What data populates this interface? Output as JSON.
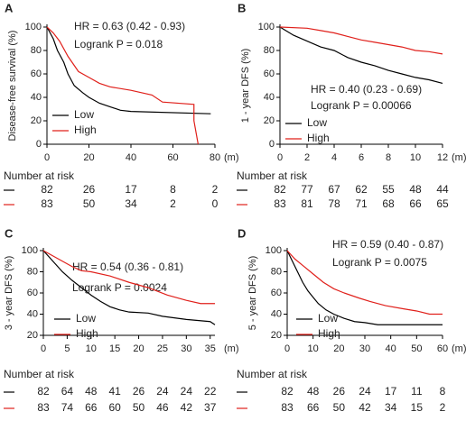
{
  "chart_data": [
    {
      "type": "line",
      "panel": "A",
      "y_label": "Disease-free survival (%)",
      "x_label": "(m)",
      "annotations": [
        "HR = 0.63 (0.42 - 0.93)",
        "Logrank P = 0.018"
      ],
      "xlim": [
        0,
        80
      ],
      "xticks": [
        0,
        20,
        40,
        60,
        80
      ],
      "ylim": [
        0,
        100
      ],
      "yticks": [
        0,
        20,
        40,
        60,
        80,
        100
      ],
      "legend": "lower left",
      "series": [
        {
          "name": "Low",
          "color": "#000000",
          "x": [
            0,
            3,
            5,
            8,
            10,
            13,
            17,
            20,
            25,
            30,
            35,
            40,
            78
          ],
          "values": [
            100,
            90,
            80,
            70,
            60,
            50,
            44,
            40,
            35,
            32,
            29,
            28,
            26
          ]
        },
        {
          "name": "High",
          "color": "#e0201b",
          "x": [
            0,
            3,
            6,
            10,
            15,
            20,
            25,
            30,
            40,
            50,
            55,
            70,
            70,
            72
          ],
          "values": [
            100,
            95,
            88,
            75,
            62,
            57,
            52,
            49,
            46,
            42,
            36,
            34,
            20,
            0
          ]
        }
      ],
      "risk_title": "Number at risk",
      "at_risk": [
        [
          82,
          26,
          17,
          8,
          2
        ],
        [
          83,
          50,
          34,
          2,
          0
        ]
      ]
    },
    {
      "type": "line",
      "panel": "B",
      "y_label": "1 - year DFS (%)",
      "x_label": "(m)",
      "annotations": [
        "HR = 0.40 (0.23 - 0.69)",
        "Logrank P = 0.00066"
      ],
      "xlim": [
        0,
        12
      ],
      "xticks": [
        0,
        2,
        4,
        6,
        8,
        10,
        12
      ],
      "ylim": [
        0,
        100
      ],
      "yticks": [
        0,
        20,
        40,
        60,
        80,
        100
      ],
      "legend": "center left",
      "series": [
        {
          "name": "Low",
          "color": "#000000",
          "x": [
            0,
            1,
            2,
            3,
            4,
            5,
            6,
            7,
            8,
            9,
            10,
            11,
            12
          ],
          "values": [
            100,
            93,
            88,
            83,
            80,
            74,
            70,
            67,
            63,
            60,
            57,
            55,
            52
          ]
        },
        {
          "name": "High",
          "color": "#e0201b",
          "x": [
            0,
            2,
            3,
            4,
            5,
            6,
            7,
            8,
            9,
            10,
            11,
            12
          ],
          "values": [
            100,
            99,
            97,
            95,
            92,
            89,
            87,
            85,
            83,
            80,
            79,
            77
          ]
        }
      ],
      "risk_title": "Number at risk",
      "at_risk": [
        [
          82,
          77,
          67,
          62,
          55,
          48,
          44
        ],
        [
          83,
          81,
          78,
          71,
          68,
          66,
          65
        ]
      ]
    },
    {
      "type": "line",
      "panel": "C",
      "y_label": "3 - year DFS (%)",
      "x_label": "(m)",
      "annotations": [
        "HR = 0.54 (0.36 - 0.81)",
        "Logrank P = 0.0024"
      ],
      "xlim": [
        0,
        36
      ],
      "xticks": [
        0,
        5,
        10,
        15,
        20,
        25,
        30,
        35
      ],
      "ylim": [
        20,
        100
      ],
      "yticks": [
        20,
        40,
        60,
        80,
        100
      ],
      "legend": "lower left",
      "series": [
        {
          "name": "Low",
          "color": "#000000",
          "x": [
            0,
            2,
            4,
            6,
            8,
            10,
            12,
            14,
            16,
            18,
            22,
            25,
            30,
            35,
            36
          ],
          "values": [
            100,
            90,
            80,
            72,
            65,
            58,
            52,
            47,
            44,
            42,
            41,
            38,
            35,
            33,
            30
          ]
        },
        {
          "name": "High",
          "color": "#e0201b",
          "x": [
            0,
            2,
            4,
            6,
            8,
            10,
            14,
            18,
            22,
            26,
            30,
            33,
            36
          ],
          "values": [
            100,
            95,
            90,
            85,
            81,
            80,
            76,
            70,
            65,
            58,
            53,
            50,
            50
          ]
        }
      ],
      "risk_title": "Number at risk",
      "at_risk": [
        [
          82,
          64,
          48,
          41,
          26,
          24,
          24,
          22
        ],
        [
          83,
          74,
          66,
          60,
          50,
          46,
          42,
          37
        ]
      ]
    },
    {
      "type": "line",
      "panel": "D",
      "y_label": "5 - year DFS (%)",
      "x_label": "(m)",
      "annotations": [
        "HR = 0.59 (0.40 - 0.87)",
        "Logrank P = 0.0075"
      ],
      "xlim": [
        0,
        60
      ],
      "xticks": [
        0,
        10,
        20,
        30,
        40,
        50,
        60
      ],
      "ylim": [
        20,
        100
      ],
      "yticks": [
        20,
        40,
        60,
        80,
        100
      ],
      "legend": "lower left",
      "series": [
        {
          "name": "Low",
          "color": "#000000",
          "x": [
            0,
            2,
            4,
            6,
            8,
            10,
            12,
            15,
            18,
            22,
            26,
            30,
            35,
            60
          ],
          "values": [
            100,
            90,
            80,
            70,
            62,
            56,
            50,
            44,
            40,
            36,
            33,
            32,
            30,
            30
          ]
        },
        {
          "name": "High",
          "color": "#e0201b",
          "x": [
            0,
            3,
            6,
            10,
            14,
            18,
            22,
            28,
            32,
            38,
            45,
            50,
            55,
            60
          ],
          "values": [
            100,
            92,
            86,
            78,
            70,
            64,
            60,
            55,
            52,
            48,
            45,
            43,
            40,
            40
          ]
        }
      ],
      "risk_title": "Number at risk",
      "at_risk": [
        [
          82,
          48,
          26,
          24,
          17,
          11,
          8
        ],
        [
          83,
          66,
          50,
          42,
          34,
          15,
          2
        ]
      ]
    }
  ]
}
